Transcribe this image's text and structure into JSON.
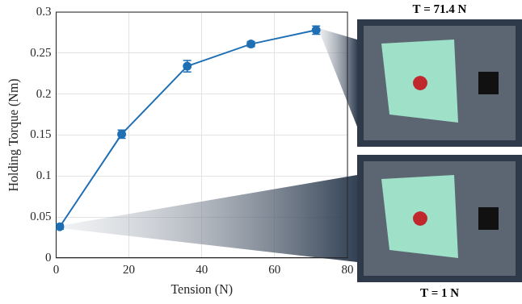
{
  "chart_data": {
    "type": "line",
    "x_label": "Tension (N)",
    "y_label": "Holding Torque (Nm)",
    "series": [
      {
        "name": "Holding Torque",
        "color": "#1f6fb4",
        "marker": "circle",
        "line_style": "solid",
        "x": [
          1,
          18,
          36,
          53.5,
          71.4
        ],
        "values": [
          0.038,
          0.151,
          0.234,
          0.261,
          0.278
        ],
        "errors": [
          0.003,
          0.005,
          0.007,
          0.003,
          0.005
        ]
      }
    ],
    "xlim": [
      0,
      80
    ],
    "xticks": [
      0,
      20,
      40,
      60,
      80
    ],
    "ylim": [
      0,
      0.3
    ],
    "yticks": [
      0,
      0.05,
      0.1,
      0.15,
      0.2,
      0.25,
      0.3
    ],
    "grid": true,
    "annotations": [
      {
        "text": "T = 71.4 N",
        "x": 71.4
      },
      {
        "text": "T = 1 N",
        "x": 1
      }
    ]
  }
}
